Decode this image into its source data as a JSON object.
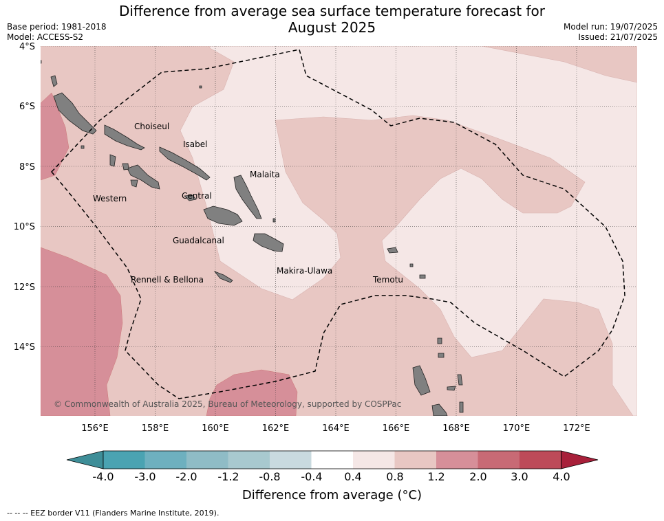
{
  "title_line1": "Difference from average sea surface temperature forecast for",
  "title_line2": "August 2025",
  "base_period": "Base period: 1981-2018",
  "model": "Model: ACCESS-S2",
  "model_run": "Model run: 19/07/2025",
  "issued": "Issued: 21/07/2025",
  "lat_labels": [
    "4°S",
    "6°S",
    "8°S",
    "10°S",
    "12°S",
    "14°S"
  ],
  "lon_labels": [
    "156°E",
    "158°E",
    "160°E",
    "162°E",
    "164°E",
    "166°E",
    "168°E",
    "170°E",
    "172°E"
  ],
  "provinces": [
    "Choiseul",
    "Isabel",
    "Malaita",
    "Western",
    "Central",
    "Guadalcanal",
    "Rennell & Bellona",
    "Makira-Ulawa",
    "Temotu"
  ],
  "copyright": "© Commonwealth of Australia 2025, Bureau of Meteorology, supported by COSPPac",
  "colorbar_ticks": [
    "-4.0",
    "-3.0",
    "-2.0",
    "-1.2",
    "-0.8",
    "-0.4",
    "0.4",
    "0.8",
    "1.2",
    "2.0",
    "3.0",
    "4.0"
  ],
  "colorbar_colors": [
    "#3e8e98",
    "#4aa3b2",
    "#6eb0bf",
    "#8fbcc6",
    "#a8c9cf",
    "#c9dadf",
    "#ffffff",
    "#f5e7e6",
    "#e8c7c3",
    "#d68f99",
    "#c86a75",
    "#bd4a59",
    "#a8203a"
  ],
  "colorbar_label": "Difference from average (°C)",
  "legend_note": "-- -- -- EEZ border V11 (Flanders Marine Institute, 2019).",
  "colors": {
    "land": "#808080",
    "anomaly_0_4_to_0_8": "#f5e7e6",
    "anomaly_0_8_to_1_2": "#e8c7c3",
    "anomaly_1_2_to_2_0": "#d68f99"
  }
}
